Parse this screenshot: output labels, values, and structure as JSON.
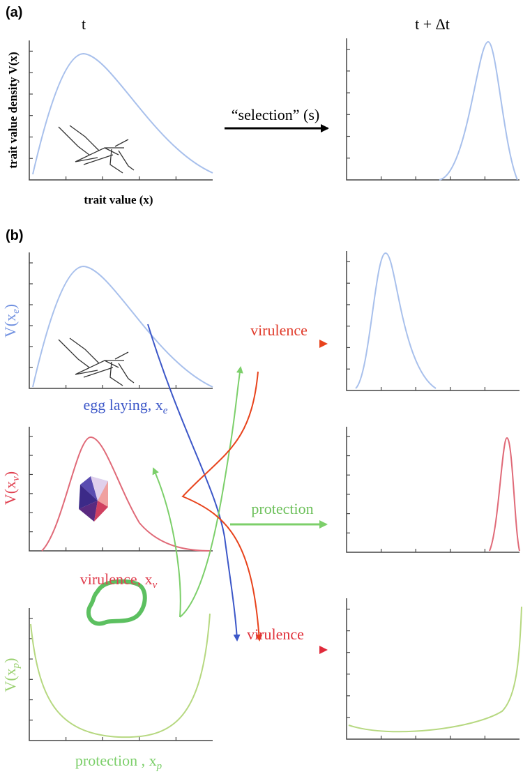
{
  "panel_a": {
    "label": "(a)",
    "time_left": "t",
    "time_right": "t + Δt",
    "y_label": "trait value density V(x)",
    "x_label": "trait value (x)",
    "arrow_label": "“selection” (s)"
  },
  "panel_b": {
    "label": "(b)",
    "rows": [
      {
        "y_label": {
          "base": "V(x",
          "sub": "e",
          "close": ")"
        },
        "x_label": {
          "base": "egg laying, x",
          "sub": "e"
        }
      },
      {
        "y_label": {
          "base": "V(x",
          "sub": "v",
          "close": ")"
        },
        "x_label": {
          "base": "virulence, x",
          "sub": "v"
        }
      },
      {
        "y_label": {
          "base": "V(x",
          "sub": "p",
          "close": ")"
        },
        "x_label": {
          "base": "protection , x",
          "sub": "p"
        }
      }
    ],
    "arrow_labels": [
      "virulence",
      "protection",
      "virulence"
    ]
  }
}
